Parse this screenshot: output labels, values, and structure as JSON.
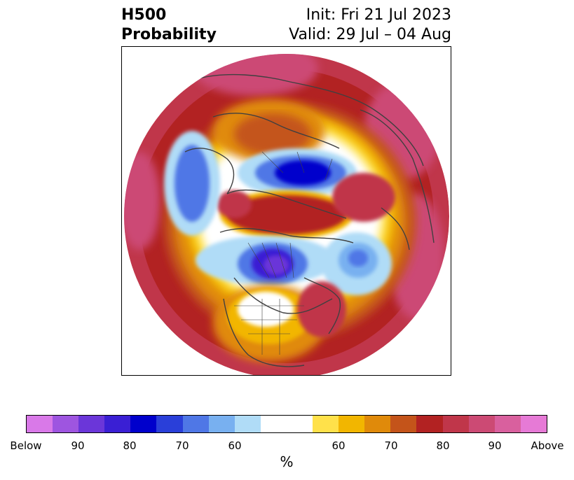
{
  "header": {
    "variable": "H500",
    "product": "Probability",
    "init": "Init: Fri 21 Jul 2023",
    "valid": "Valid: 29 Jul – 04 Aug"
  },
  "colorbar": {
    "unit": "%",
    "colors": [
      "#d979e8",
      "#9e55e0",
      "#6b36d9",
      "#3a1fd4",
      "#0000cc",
      "#2a3fd9",
      "#4f77e6",
      "#78b0f0",
      "#b0dcf7",
      "#ffffff",
      "#ffffff",
      "#ffe14a",
      "#f2b600",
      "#e08a0a",
      "#c4541a",
      "#b22222",
      "#c0364a",
      "#cc4a74",
      "#d9609e",
      "#e67ad6"
    ],
    "tick_labels": [
      "Below",
      "90",
      "80",
      "70",
      "60",
      "60",
      "70",
      "80",
      "90",
      "Above"
    ],
    "below_label": "Below",
    "above_label": "Above"
  },
  "map": {
    "projection": "polar stereographic",
    "field": "500 hPa height anomaly probability"
  }
}
